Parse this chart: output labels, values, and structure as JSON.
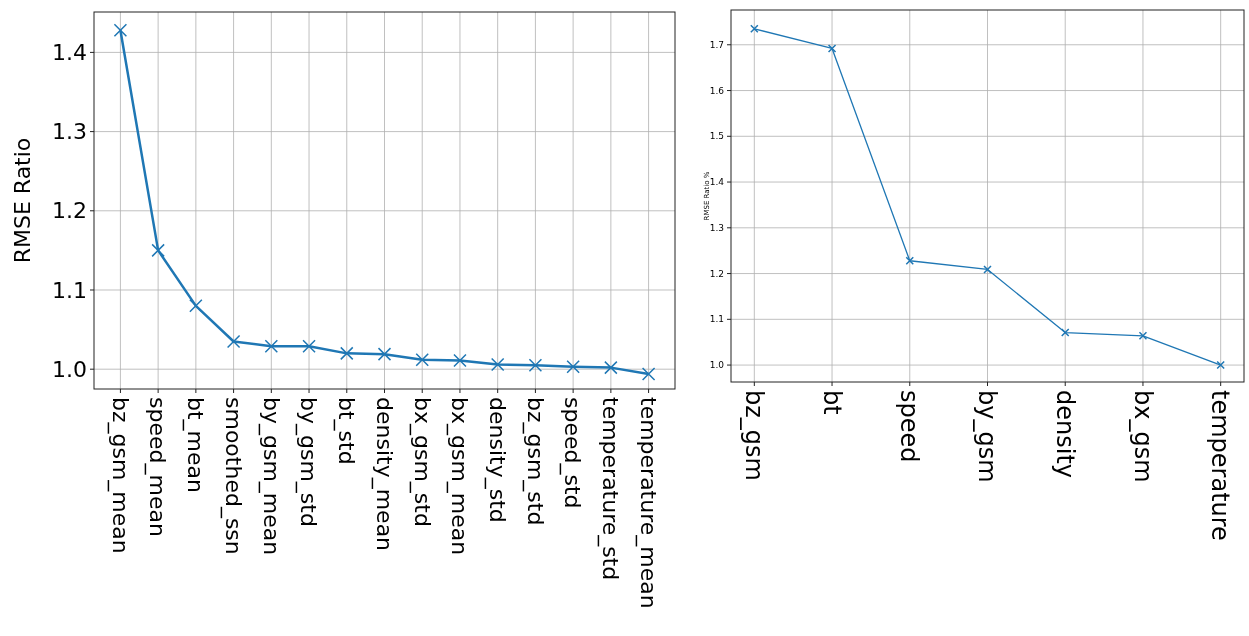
{
  "chart_data": [
    {
      "type": "line",
      "ylabel": "RMSE Ratio",
      "categories": [
        "bz_gsm_mean",
        "speed_mean",
        "bt_mean",
        "smoothed_ssn",
        "by_gsm_mean",
        "by_gsm_std",
        "bt_std",
        "density_mean",
        "bx_gsm_std",
        "bx_gsm_mean",
        "density_std",
        "bz_gsm_std",
        "speed_std",
        "temperature_std",
        "temperature_mean"
      ],
      "series": [
        {
          "color": "#1f77b4",
          "values": [
            1.428,
            1.15,
            1.08,
            1.035,
            1.029,
            1.029,
            1.02,
            1.019,
            1.012,
            1.011,
            1.006,
            1.005,
            1.003,
            1.002,
            0.994
          ]
        }
      ],
      "ylim": [
        0.975,
        1.451
      ],
      "yticks": [
        {
          "value": 1.0,
          "label": "1.0"
        },
        1.1,
        1.2,
        1.3,
        1.4
      ],
      "grid": true,
      "marker": "cross",
      "line_style": "solid"
    },
    {
      "type": "line",
      "ylabel": "RMSE Ratio %",
      "categories": [
        "bz_gsm",
        "bt",
        "speed",
        "by_gsm",
        "density",
        "bx_gsm",
        "temperature"
      ],
      "series": [
        {
          "color": "#1f77b4",
          "values": [
            1.735,
            1.692,
            1.228,
            1.209,
            1.071,
            1.064,
            1.0
          ]
        }
      ],
      "ylim": [
        0.963,
        1.776
      ],
      "yticks": [
        {
          "value": 1.0,
          "label": "1.0"
        },
        1.1,
        1.2,
        1.3,
        1.4,
        1.5,
        1.6,
        1.7
      ],
      "grid": true,
      "marker": "cross",
      "line_style": "solid"
    }
  ]
}
